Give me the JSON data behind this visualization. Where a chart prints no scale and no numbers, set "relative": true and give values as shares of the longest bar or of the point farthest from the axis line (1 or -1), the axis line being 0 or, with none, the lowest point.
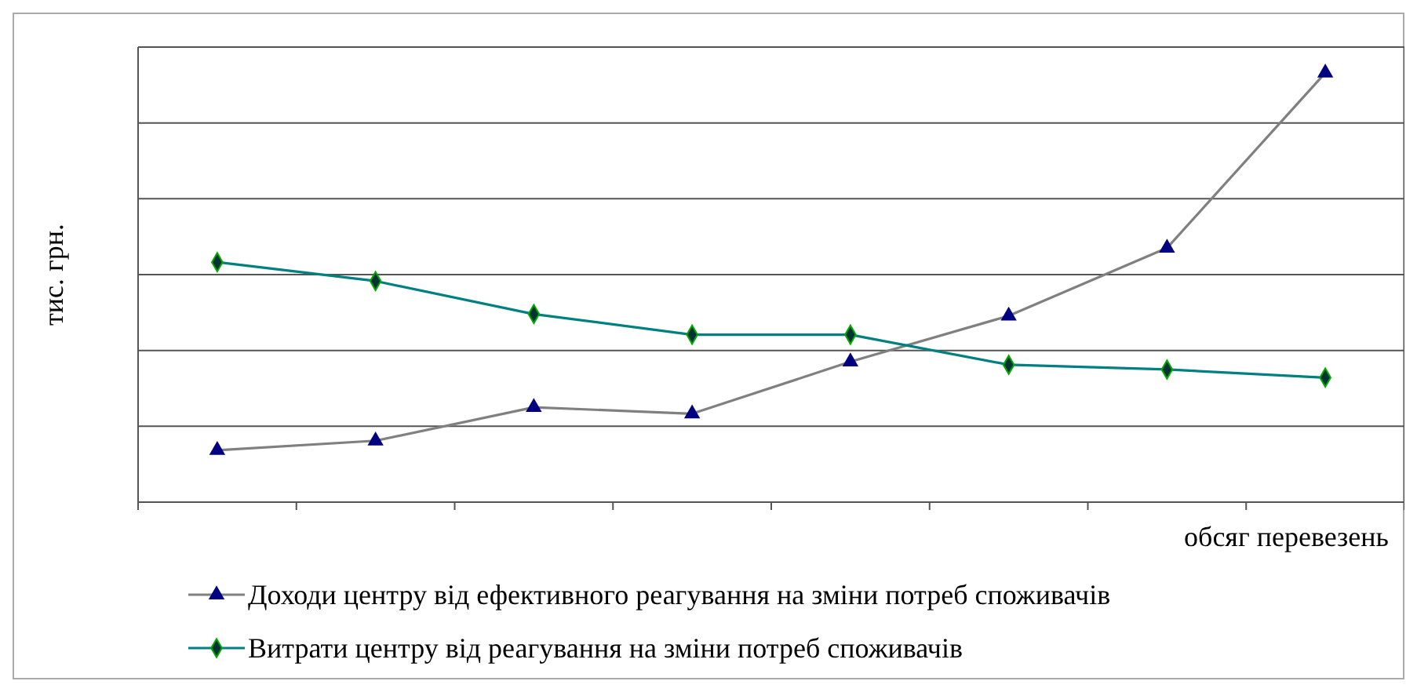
{
  "chart_data": {
    "type": "line",
    "relative": true,
    "ylabel": "тис. грн.",
    "xlabel": "обсяг перевезень",
    "categories": [
      null,
      null,
      null,
      null,
      null,
      null,
      null,
      null
    ],
    "grid": "y",
    "legend": "bottom",
    "series": [
      {
        "name": "Доходи центру від ефективного реагування на зміни потреб споживачів",
        "color": "#808080",
        "marker": "triangle",
        "values": [
          0.121,
          0.143,
          0.221,
          0.206,
          0.327,
          0.434,
          0.592,
          1
        ]
      },
      {
        "name": "Витрати центру від реагування на зміни потреб споживачів",
        "color": "#008080",
        "marker": "diamond",
        "values": [
          0.559,
          0.515,
          0.438,
          0.39,
          0.39,
          0.32,
          0.309,
          0.29
        ]
      }
    ]
  }
}
